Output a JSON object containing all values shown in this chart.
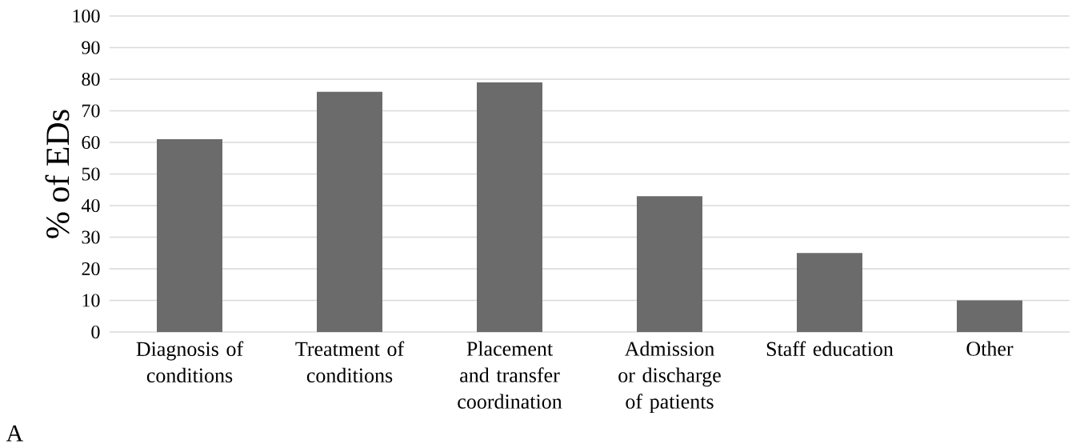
{
  "chart_data": {
    "type": "bar",
    "ylabel": "% of EDs",
    "categories": [
      "Diagnosis of conditions",
      "Treatment of conditions",
      "Placement and transfer coordination",
      "Admission or discharge of patients",
      "Staff education",
      "Other"
    ],
    "values": [
      61,
      76,
      79,
      43,
      25,
      10
    ],
    "color": "#6b6b6b",
    "ylim": [
      0,
      100
    ],
    "yticks": [
      0,
      10,
      20,
      30,
      40,
      50,
      60,
      70,
      80,
      90,
      100
    ],
    "grid": "y",
    "annotations": [
      "A"
    ]
  }
}
